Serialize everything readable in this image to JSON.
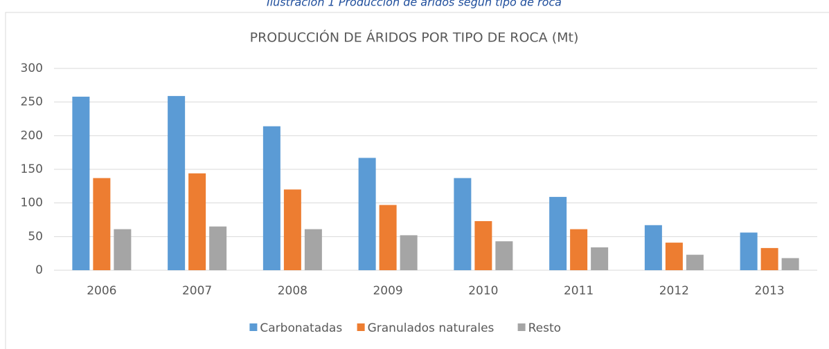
{
  "caption": "Ilustración 1 Producción de áridos según tipo de roca",
  "chart_data": {
    "type": "bar",
    "title": "PRODUCCIÓN DE ÁRIDOS POR TIPO DE ROCA (Mt)",
    "categories": [
      "2006",
      "2007",
      "2008",
      "2009",
      "2010",
      "2011",
      "2012",
      "2013"
    ],
    "series": [
      {
        "name": "Carbonatadas",
        "color": "#5b9bd5",
        "values": [
          258,
          259,
          214,
          167,
          137,
          109,
          67,
          56
        ]
      },
      {
        "name": "Granulados naturales",
        "color": "#ed7d31",
        "values": [
          137,
          144,
          120,
          97,
          73,
          61,
          41,
          33
        ]
      },
      {
        "name": "Resto",
        "color": "#a5a5a5",
        "values": [
          61,
          65,
          61,
          52,
          43,
          34,
          23,
          18
        ]
      }
    ],
    "ylim": [
      0,
      300
    ],
    "yticks": [
      0,
      50,
      100,
      150,
      200,
      250,
      300
    ],
    "grid": true,
    "legend": "bottom"
  }
}
